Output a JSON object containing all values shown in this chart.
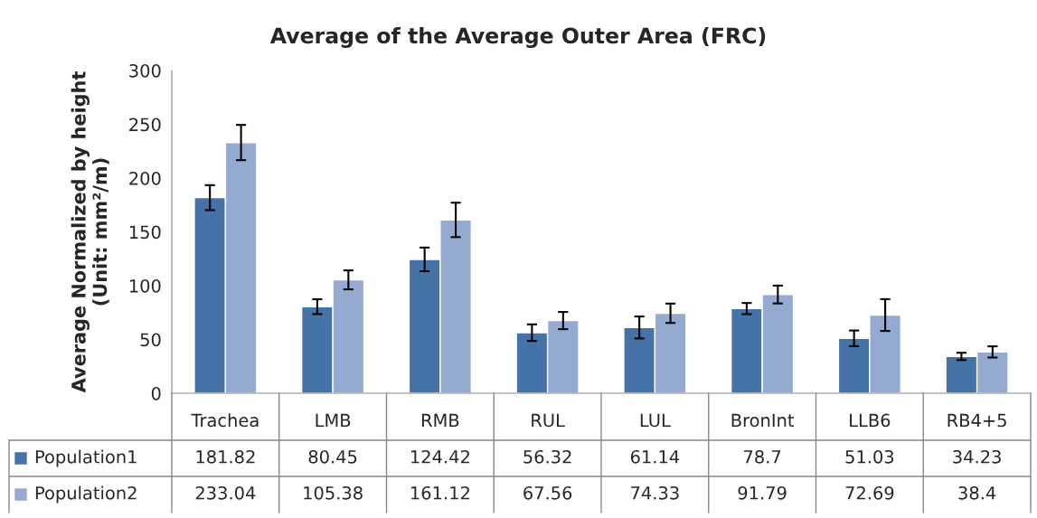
{
  "chart_data": {
    "type": "bar",
    "title": "Average of the Average Outer Area (FRC)",
    "ylabel": "Average Normalized by height\n(Unit: mm²/m)",
    "categories": [
      "Trachea",
      "LMB",
      "RMB",
      "RUL",
      "LUL",
      "BronInt",
      "LLB6",
      "RB4+5"
    ],
    "series": [
      {
        "name": "Population1",
        "color": "#4572a7",
        "values": [
          181.82,
          80.45,
          124.42,
          56.32,
          61.14,
          78.7,
          51.03,
          34.23
        ],
        "errors": [
          11.6,
          6.9,
          11,
          7.7,
          10.2,
          5.2,
          7.3,
          3.4
        ]
      },
      {
        "name": "Population2",
        "color": "#95aad1",
        "values": [
          233.04,
          105.38,
          161.12,
          67.56,
          74.33,
          91.79,
          72.69,
          38.4
        ],
        "errors": [
          16.4,
          8.8,
          16,
          8,
          9,
          8.3,
          14.8,
          5.2
        ]
      }
    ],
    "ylim": [
      0,
      300
    ],
    "yticks": [
      0,
      50,
      100,
      150,
      200,
      250,
      300
    ],
    "grid": false,
    "legend": "bottom",
    "data_labels": true
  }
}
